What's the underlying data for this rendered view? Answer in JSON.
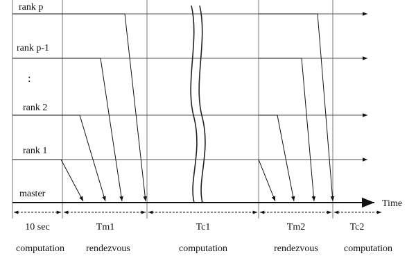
{
  "ranks": {
    "rank_p": "rank p",
    "rank_p1": "rank p-1",
    "dots": ":",
    "rank_2": "rank 2",
    "rank_1": "rank 1",
    "master": "master"
  },
  "axis": {
    "time": "Time"
  },
  "intervals": {
    "i1": "10 sec",
    "i2": "Tm1",
    "i3": "Tc1",
    "i4": "Tm2",
    "i5": "Tc2"
  },
  "phases": {
    "p1": "computation",
    "p2": "rendezvous",
    "p3": "computation",
    "p4": "rendezvous",
    "p5": "computation"
  }
}
